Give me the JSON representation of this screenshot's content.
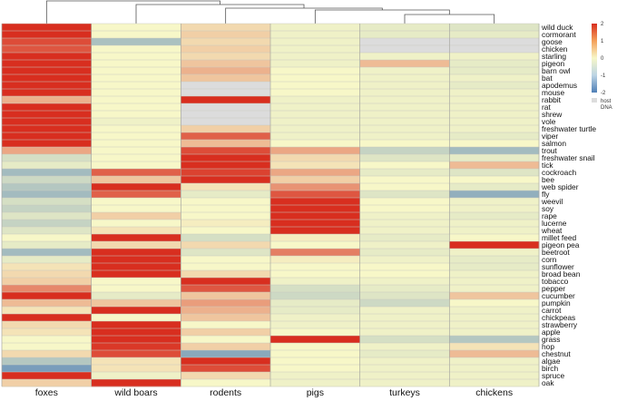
{
  "chart_data": {
    "type": "heatmap",
    "columns": [
      "foxes",
      "wild boars",
      "rodents",
      "pigs",
      "turkeys",
      "chickens"
    ],
    "rows": [
      "wild duck",
      "cormorant",
      "goose",
      "chicken",
      "starling",
      "pigeon",
      "barn owl",
      "bat",
      "apodemus",
      "mouse",
      "rabbit",
      "rat",
      "shrew",
      "vole",
      "freshwater turtle",
      "viper",
      "salmon",
      "trout",
      "freshwater snail",
      "tick",
      "cockroach",
      "bee",
      "web spider",
      "fly",
      "weevil",
      "soy",
      "rape",
      "lucerne",
      "wheat",
      "millet feed",
      "pigeon pea",
      "beetroot",
      "corn",
      "sunflower",
      "broad bean",
      "tobacco",
      "pepper",
      "cucumber",
      "pumpkin",
      "carrot",
      "chickpeas",
      "strawberry",
      "apple",
      "grass",
      "hop",
      "chestnut",
      "algae",
      "birch",
      "spruce",
      "oak"
    ],
    "values": [
      [
        2.2,
        0.0,
        0.3,
        -0.1,
        -0.2,
        -0.3
      ],
      [
        2.6,
        0.0,
        0.4,
        -0.1,
        -0.2,
        -0.2
      ],
      [
        1.7,
        -0.9,
        0.3,
        -0.1,
        null,
        null
      ],
      [
        1.6,
        0.0,
        0.4,
        -0.1,
        null,
        null
      ],
      [
        2.1,
        0.0,
        0.3,
        -0.1,
        -0.1,
        -0.1
      ],
      [
        2.3,
        0.0,
        0.5,
        -0.1,
        0.6,
        -0.2
      ],
      [
        2.4,
        0.0,
        0.7,
        0.0,
        -0.1,
        -0.2
      ],
      [
        2.3,
        0.0,
        0.5,
        0.0,
        -0.1,
        -0.1
      ],
      [
        2.0,
        0.0,
        null,
        0.0,
        -0.1,
        -0.2
      ],
      [
        2.2,
        0.0,
        null,
        0.0,
        -0.1,
        -0.1
      ],
      [
        0.7,
        0.0,
        2.4,
        -0.1,
        -0.1,
        -0.1
      ],
      [
        2.4,
        0.0,
        null,
        -0.1,
        -0.1,
        -0.1
      ],
      [
        2.1,
        0.0,
        null,
        -0.1,
        -0.1,
        -0.1
      ],
      [
        2.2,
        -0.1,
        null,
        -0.1,
        -0.1,
        -0.1
      ],
      [
        2.1,
        0.0,
        0.4,
        -0.1,
        -0.1,
        -0.1
      ],
      [
        2.2,
        0.0,
        1.5,
        -0.1,
        -0.1,
        -0.2
      ],
      [
        2.5,
        0.0,
        0.6,
        0.0,
        0.0,
        0.0
      ],
      [
        0.8,
        0.0,
        1.7,
        0.8,
        -0.6,
        -1.0
      ],
      [
        -0.4,
        0.0,
        2.3,
        0.3,
        -0.3,
        -0.2
      ],
      [
        -0.2,
        0.0,
        2.0,
        0.2,
        0.0,
        0.6
      ],
      [
        -1.0,
        1.5,
        1.8,
        0.8,
        -0.2,
        -0.3
      ],
      [
        -0.5,
        0.5,
        2.1,
        0.4,
        0.0,
        0.0
      ],
      [
        -0.8,
        2.0,
        0.2,
        1.0,
        0.0,
        -0.2
      ],
      [
        -1.0,
        1.5,
        -0.2,
        1.6,
        -0.3,
        -1.2
      ],
      [
        -0.4,
        0.0,
        0.0,
        2.7,
        0.0,
        -0.1
      ],
      [
        -0.6,
        0.0,
        0.0,
        2.6,
        0.0,
        -0.1
      ],
      [
        -0.3,
        0.4,
        0.0,
        2.6,
        -0.1,
        -0.2
      ],
      [
        -0.6,
        0.0,
        0.1,
        2.5,
        -0.1,
        -0.1
      ],
      [
        -0.3,
        0.2,
        0.0,
        2.7,
        -0.1,
        -0.1
      ],
      [
        0.0,
        2.3,
        -0.4,
        0.1,
        -0.2,
        0.0
      ],
      [
        -0.2,
        0.3,
        0.3,
        0.0,
        -0.1,
        2.8
      ],
      [
        -1.0,
        2.1,
        -0.3,
        1.2,
        -0.2,
        -0.1
      ],
      [
        -0.2,
        2.4,
        0.0,
        0.1,
        -0.1,
        -0.2
      ],
      [
        0.2,
        2.6,
        0.0,
        0.0,
        0.0,
        -0.2
      ],
      [
        0.3,
        2.3,
        0.3,
        0.0,
        0.0,
        -0.1
      ],
      [
        0.4,
        0.0,
        2.4,
        -0.1,
        -0.1,
        -0.1
      ],
      [
        1.1,
        0.0,
        1.6,
        -0.4,
        -0.2,
        -0.1
      ],
      [
        2.3,
        -0.2,
        0.5,
        -0.5,
        -0.3,
        0.5
      ],
      [
        0.6,
        0.5,
        0.9,
        -0.2,
        -0.5,
        0.0
      ],
      [
        0.2,
        2.2,
        0.7,
        -0.2,
        -0.1,
        -0.1
      ],
      [
        2.7,
        0.0,
        0.5,
        -0.1,
        -0.1,
        -0.1
      ],
      [
        0.3,
        2.6,
        0.0,
        -0.1,
        -0.1,
        -0.1
      ],
      [
        0.2,
        2.3,
        0.4,
        0.0,
        -0.1,
        -0.1
      ],
      [
        0.0,
        2.4,
        0.0,
        2.5,
        -0.4,
        -0.8
      ],
      [
        0.0,
        1.9,
        0.4,
        0.0,
        -0.1,
        0.2
      ],
      [
        0.3,
        1.7,
        -1.3,
        0.0,
        -0.2,
        0.6
      ],
      [
        -0.8,
        0.2,
        2.3,
        0.0,
        -0.1,
        -0.1
      ],
      [
        -1.5,
        0.2,
        1.7,
        0.0,
        -0.1,
        -0.1
      ],
      [
        2.3,
        -0.1,
        0.3,
        -0.1,
        -0.1,
        -0.1
      ],
      [
        0.4,
        2.4,
        0.0,
        -0.1,
        -0.1,
        -0.1
      ]
    ],
    "scale": {
      "min": -2,
      "max": 2,
      "ticks": [
        "2",
        "1",
        "0",
        "-1",
        "-2"
      ]
    },
    "colors": {
      "low": "#4f7fb6",
      "mid": "#f7f7c8",
      "high": "#d82e1f",
      "missing": "#dcdcdc"
    },
    "legend": {
      "missing_label_line1": "host",
      "missing_label_line2": "DNA"
    },
    "dendrogram": "column clustering tree shown along the top",
    "xlabel": "",
    "ylabel": "",
    "title": ""
  }
}
